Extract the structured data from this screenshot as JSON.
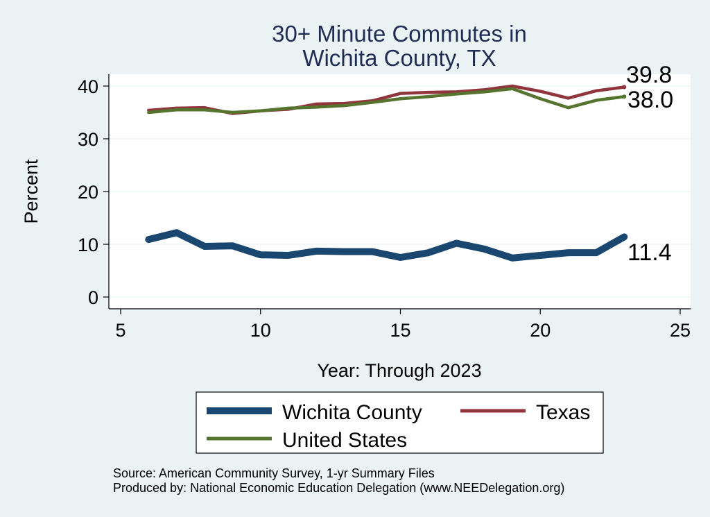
{
  "chart_data": {
    "type": "line",
    "title_line1": "30+ Minute Commutes in",
    "title_line2": "Wichita County, TX",
    "xlabel": "Year: Through 2023",
    "ylabel": "Percent",
    "xlim": [
      5,
      25
    ],
    "ylim": [
      0,
      40
    ],
    "xticks": [
      5,
      10,
      15,
      20,
      25
    ],
    "yticks": [
      0,
      10,
      20,
      30,
      40
    ],
    "x": [
      6,
      7,
      8,
      9,
      10,
      11,
      12,
      13,
      14,
      15,
      16,
      17,
      18,
      19,
      20,
      21,
      22,
      23
    ],
    "series": [
      {
        "name": "Wichita County",
        "color": "#1a476f",
        "values": [
          10.9,
          12.2,
          9.6,
          9.7,
          8.0,
          7.9,
          8.7,
          8.6,
          8.6,
          7.5,
          8.4,
          10.2,
          9.1,
          7.4,
          7.9,
          8.4,
          8.4,
          11.4
        ],
        "end_label": "11.4"
      },
      {
        "name": "Texas",
        "color": "#90353b",
        "values": [
          35.4,
          35.8,
          35.9,
          34.8,
          35.3,
          35.6,
          36.6,
          36.7,
          37.2,
          38.6,
          38.8,
          38.9,
          39.3,
          40.0,
          39.0,
          37.7,
          39.1,
          39.8
        ],
        "end_label": "39.8"
      },
      {
        "name": "United States",
        "color": "#55752f",
        "values": [
          35.0,
          35.5,
          35.5,
          35.0,
          35.3,
          35.8,
          36.0,
          36.3,
          36.9,
          37.6,
          38.0,
          38.5,
          38.9,
          39.5,
          37.6,
          35.9,
          37.3,
          38.0
        ],
        "end_label": "38.0"
      }
    ],
    "legend": [
      "Wichita County",
      "Texas",
      "United States"
    ],
    "source_line1": "Source: American Community Survey, 1-yr Summary Files",
    "source_line2": "Produced by: National Economic Education Delegation (www.NEEDelegation.org)"
  }
}
